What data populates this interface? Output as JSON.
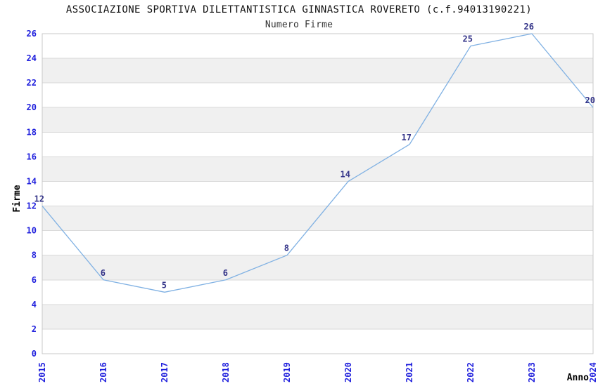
{
  "chart_data": {
    "type": "line",
    "title": "ASSOCIAZIONE SPORTIVA DILETTANTISTICA GINNASTICA ROVERETO (c.f.94013190221)",
    "subtitle": "Numero Firme",
    "xlabel": "Anno",
    "ylabel": "Firme",
    "x": [
      2015,
      2016,
      2017,
      2018,
      2019,
      2020,
      2021,
      2022,
      2023,
      2024
    ],
    "series": [
      {
        "name": "Numero Firme",
        "values": [
          12,
          6,
          5,
          6,
          8,
          14,
          17,
          25,
          26,
          20
        ]
      }
    ],
    "point_labels": [
      12,
      6,
      5,
      6,
      8,
      14,
      17,
      25,
      26,
      20
    ],
    "ylim": [
      0,
      26
    ],
    "ytick_step": 2,
    "yticks": [
      0,
      2,
      4,
      6,
      8,
      10,
      12,
      14,
      16,
      18,
      20,
      22,
      24,
      26
    ],
    "grid": "horizontal-lines-with-alternating-bands",
    "legend_position": "none",
    "colors": {
      "line": "#80b1e3",
      "tick_label": "#2020dd",
      "point_label": "#333388",
      "band_fill": "#f0f0f0",
      "grid_line": "#d9d9d9",
      "plot_border": "#c9c9c9",
      "title_text": "#111111",
      "subtitle_text": "#333333",
      "axis_title": "#000000",
      "background": "#ffffff"
    }
  }
}
